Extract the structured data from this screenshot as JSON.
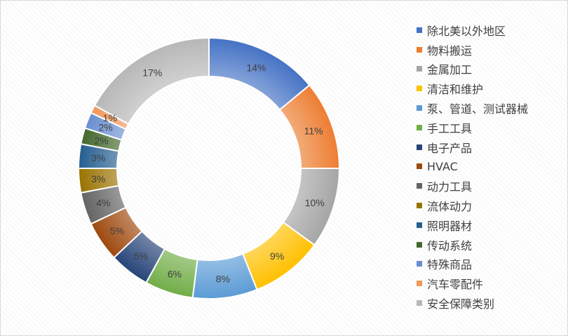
{
  "chart_data": {
    "type": "pie",
    "donut": true,
    "title": "",
    "legend_position": "right",
    "categories": [
      "除北美以外地区",
      "物料搬运",
      "金属加工",
      "清洁和维护",
      "泵、管道、测试器械",
      "手工工具",
      "电子产品",
      "HVAC",
      "动力工具",
      "流体动力",
      "照明器材",
      "传动系统",
      "特殊商品",
      "汽车零配件",
      "安全保障类别"
    ],
    "values": [
      14,
      11,
      10,
      9,
      8,
      6,
      5,
      5,
      4,
      3,
      3,
      2,
      2,
      1,
      17
    ],
    "labels": [
      "14%",
      "11%",
      "10%",
      "9%",
      "8%",
      "6%",
      "5%",
      "5%",
      "4%",
      "3%",
      "3%",
      "2%",
      "2%",
      "1%",
      "17%"
    ],
    "colors": [
      "#4472c4",
      "#ed7d31",
      "#a5a5a5",
      "#ffc000",
      "#5b9bd5",
      "#70ad47",
      "#264478",
      "#9e480e",
      "#636363",
      "#997300",
      "#255e91",
      "#43682b",
      "#698ed0",
      "#f1975a",
      "#b7b7b7"
    ]
  }
}
